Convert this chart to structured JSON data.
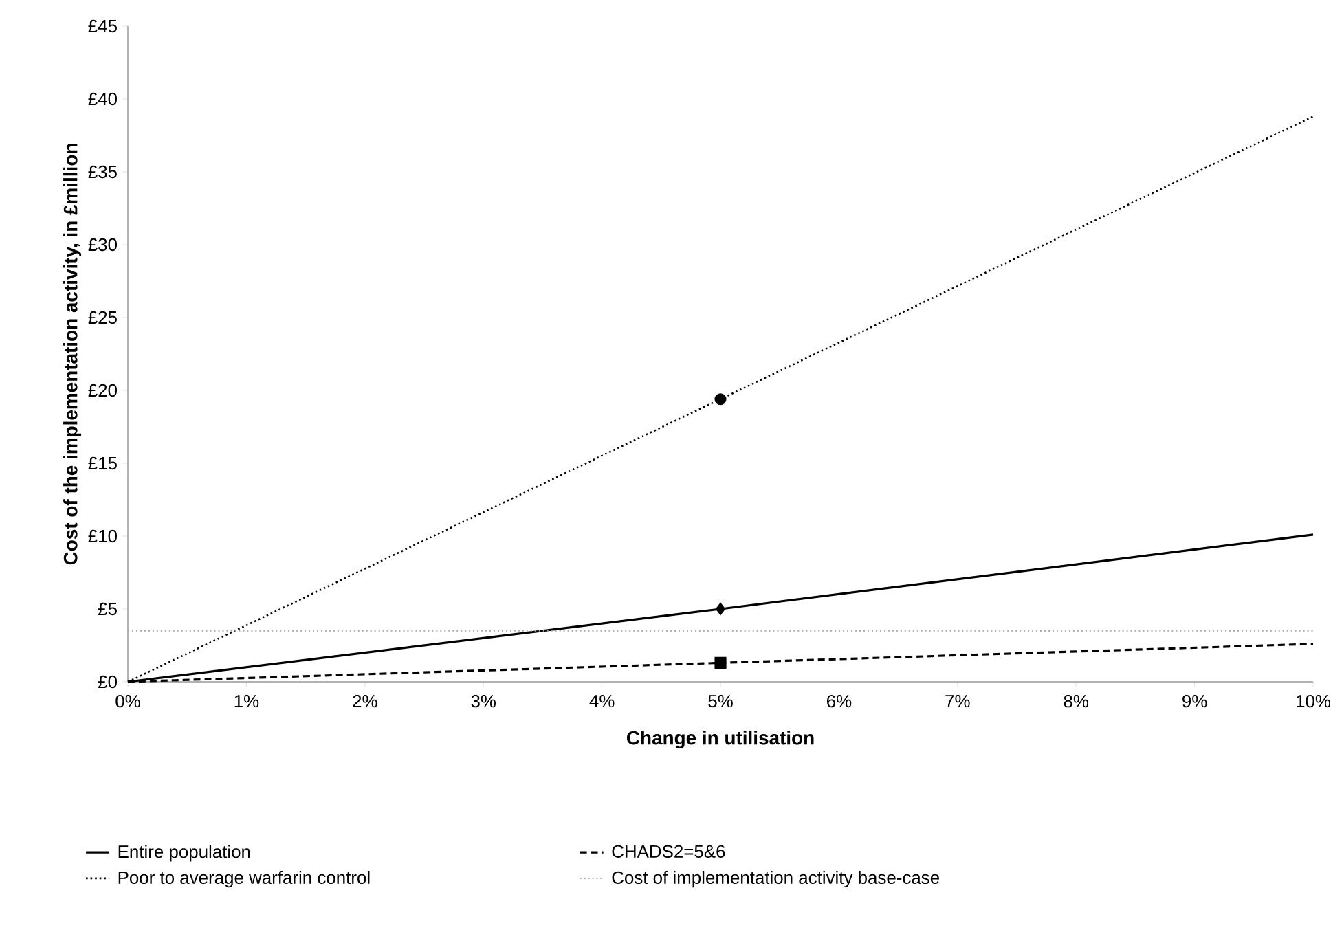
{
  "chart_data": {
    "type": "line",
    "xlabel": "Change in utilisation",
    "ylabel": "Cost of the implementation activity, in £million",
    "xlim": [
      0,
      10
    ],
    "xticks": [
      {
        "value": 0,
        "label": "0%"
      },
      {
        "value": 1,
        "label": "1%"
      },
      {
        "value": 2,
        "label": "2%"
      },
      {
        "value": 3,
        "label": "3%"
      },
      {
        "value": 4,
        "label": "4%"
      },
      {
        "value": 5,
        "label": "5%"
      },
      {
        "value": 6,
        "label": "6%"
      },
      {
        "value": 7,
        "label": "7%"
      },
      {
        "value": 8,
        "label": "8%"
      },
      {
        "value": 9,
        "label": "9%"
      },
      {
        "value": 10,
        "label": "10%"
      }
    ],
    "ylim": [
      0,
      45
    ],
    "yticks": [
      {
        "value": 0,
        "label": "£0"
      },
      {
        "value": 5,
        "label": "£5"
      },
      {
        "value": 10,
        "label": "£10"
      },
      {
        "value": 15,
        "label": "£15"
      },
      {
        "value": 20,
        "label": "£20"
      },
      {
        "value": 25,
        "label": "£25"
      },
      {
        "value": 30,
        "label": "£30"
      },
      {
        "value": 35,
        "label": "£35"
      },
      {
        "value": 40,
        "label": "£40"
      },
      {
        "value": 45,
        "label": "£45"
      }
    ],
    "grid": false,
    "legend": "bottom",
    "marker": "none",
    "series": [
      {
        "name": "Entire population",
        "color": "#000000",
        "line_style": "solid",
        "x": [
          0,
          5,
          10
        ],
        "values": [
          0,
          5.0,
          10.1
        ]
      },
      {
        "name": "CHADS2=5&6",
        "color": "#000000",
        "line_style": "dashed",
        "x": [
          0,
          5,
          10
        ],
        "values": [
          0,
          1.3,
          2.6
        ]
      },
      {
        "name": "Poor to average warfarin control",
        "color": "#000000",
        "line_style": "dotted",
        "x": [
          0,
          5,
          10
        ],
        "values": [
          0,
          19.4,
          38.8
        ]
      },
      {
        "type": "scatter",
        "color": "#000000",
        "marker": "diamond",
        "x": [
          5
        ],
        "values": [
          5.0
        ]
      },
      {
        "type": "scatter",
        "color": "#000000",
        "marker": "square",
        "x": [
          5
        ],
        "values": [
          1.3
        ]
      },
      {
        "type": "scatter",
        "color": "#000000",
        "marker": "circle",
        "x": [
          5
        ],
        "values": [
          19.4
        ]
      }
    ],
    "ref_lines": [
      {
        "axis": "y",
        "value": 3.5,
        "label": "Cost of implementation activity base-case",
        "color": "#a6a6a6",
        "line_style": "dotted"
      }
    ]
  }
}
